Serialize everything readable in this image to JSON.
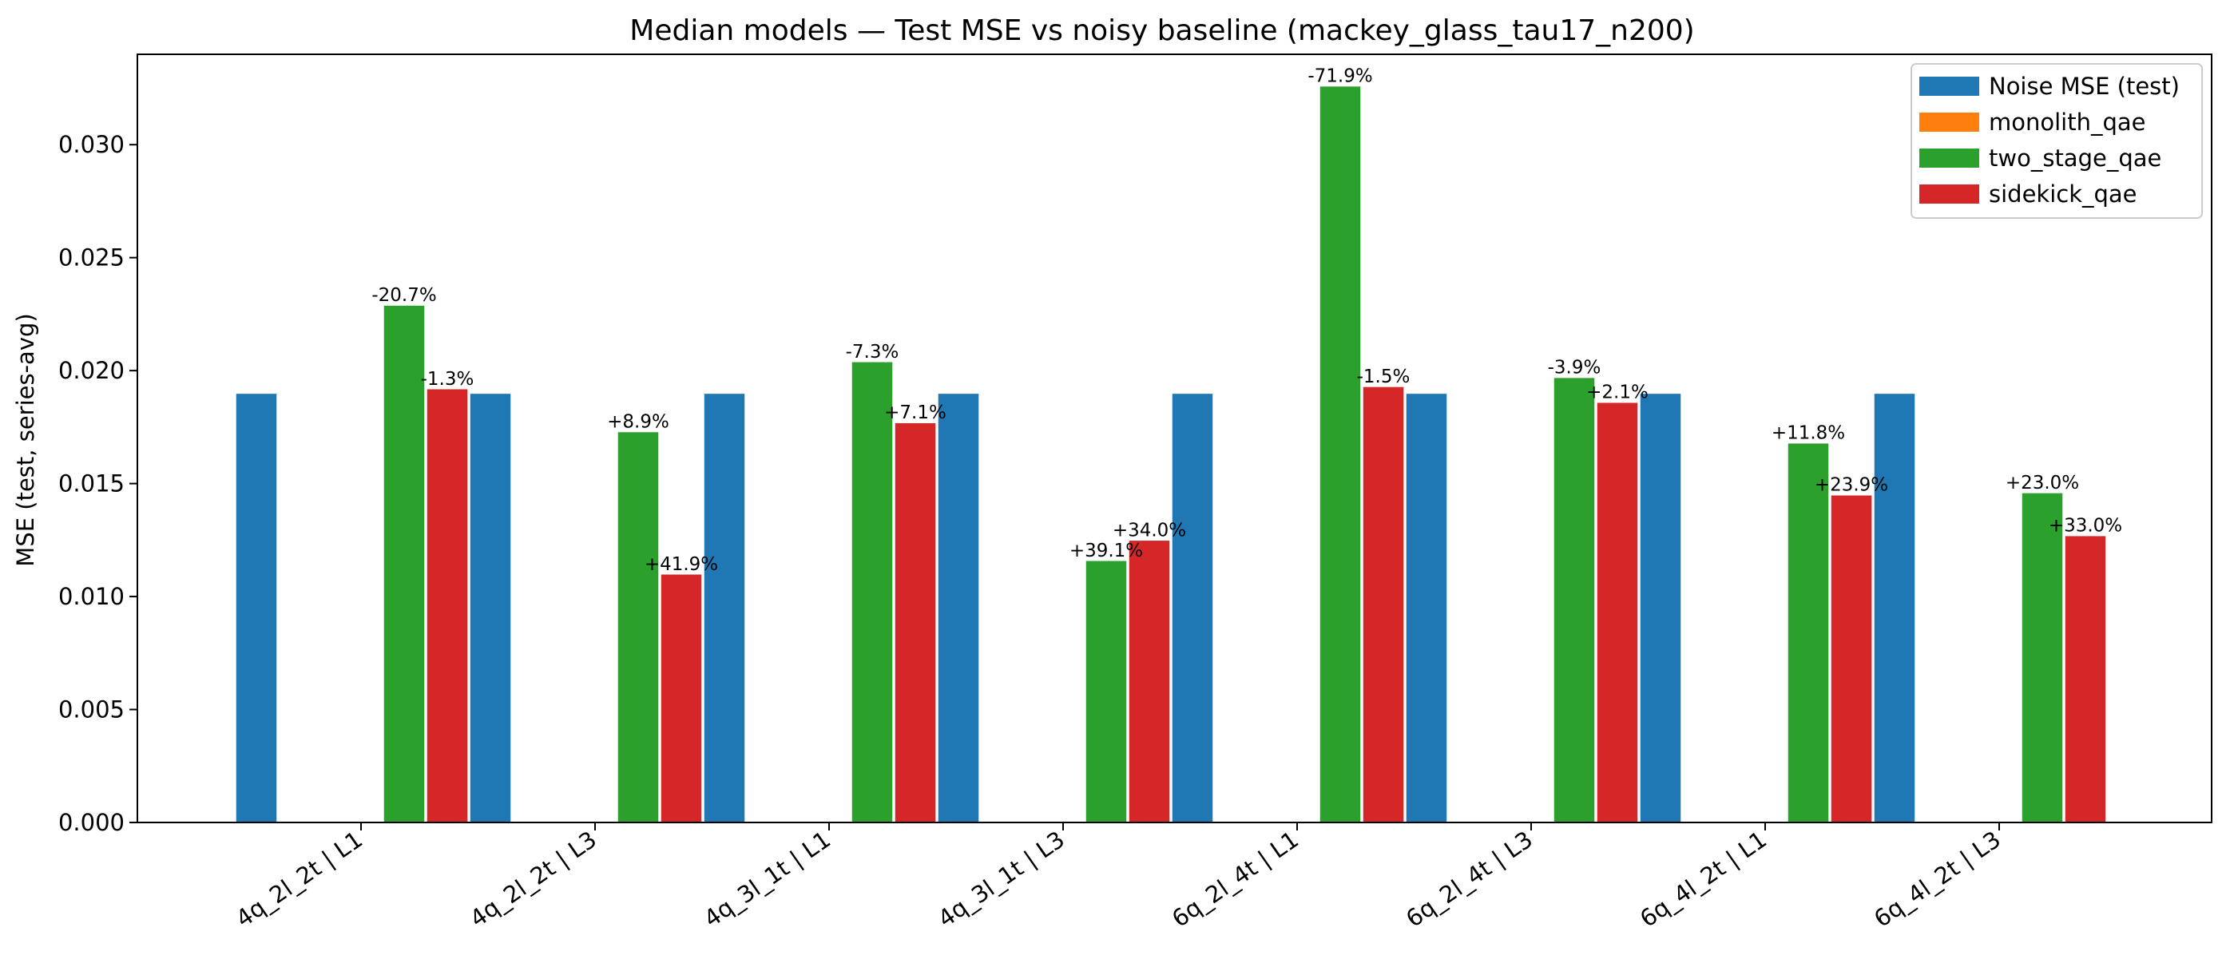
{
  "chart_data": {
    "type": "bar",
    "title": "Median models — Test MSE vs noisy baseline (mackey_glass_tau17_n200)",
    "xlabel": "",
    "ylabel": "MSE (test, series-avg)",
    "ylim": [
      0,
      0.034
    ],
    "yticks": [
      0.0,
      0.005,
      0.01,
      0.015,
      0.02,
      0.025,
      0.03
    ],
    "ytick_labels": [
      "0.000",
      "0.005",
      "0.010",
      "0.015",
      "0.020",
      "0.025",
      "0.030"
    ],
    "categories": [
      "4q_2l_2t | L1",
      "4q_2l_2t | L3",
      "4q_3l_1t | L1",
      "4q_3l_1t | L3",
      "6q_2l_4t | L1",
      "6q_2l_4t | L3",
      "6q_4l_2t | L1",
      "6q_4l_2t | L3"
    ],
    "series": [
      {
        "name": "Noise MSE (test)",
        "color": "#1f77b4",
        "values": [
          0.019,
          0.019,
          0.019,
          0.019,
          0.019,
          0.019,
          0.019,
          0.019
        ],
        "labels": [
          "",
          "",
          "",
          "",
          "",
          "",
          "",
          ""
        ]
      },
      {
        "name": "monolith_qae",
        "color": "#ff7f0e",
        "values": [
          null,
          null,
          null,
          null,
          null,
          null,
          null,
          null
        ],
        "labels": [
          "",
          "",
          "",
          "",
          "",
          "",
          "",
          ""
        ]
      },
      {
        "name": "two_stage_qae",
        "color": "#2ca02c",
        "values": [
          0.0229,
          0.0173,
          0.0204,
          0.0116,
          0.0326,
          0.0197,
          0.0168,
          0.0146
        ],
        "labels": [
          "-20.7%",
          "+8.9%",
          "-7.3%",
          "+39.1%",
          "-71.9%",
          "-3.9%",
          "+11.8%",
          "+23.0%"
        ]
      },
      {
        "name": "sidekick_qae",
        "color": "#d62728",
        "values": [
          0.0192,
          0.011,
          0.0177,
          0.0125,
          0.0193,
          0.0186,
          0.0145,
          0.0127
        ],
        "labels": [
          "-1.3%",
          "+41.9%",
          "+7.1%",
          "+34.0%",
          "-1.5%",
          "+2.1%",
          "+23.9%",
          "+33.0%"
        ]
      }
    ],
    "grid": false,
    "legend_position": "top-right"
  }
}
